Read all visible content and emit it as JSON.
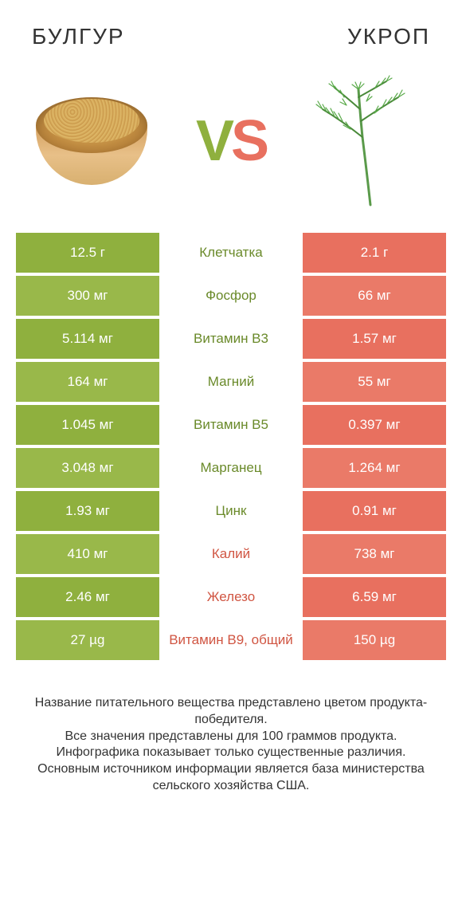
{
  "left_title": "БУЛГУР",
  "right_title": "УКРОП",
  "colors": {
    "green": "#8fb03e",
    "green_alt": "#99b84a",
    "orange": "#e8705f",
    "orange_alt": "#ea7a68",
    "text_green": "#6a8a2a",
    "text_orange": "#d05542"
  },
  "rows": [
    {
      "left": "12.5 г",
      "mid": "Клетчатка",
      "right": "2.1 г",
      "winner": "left"
    },
    {
      "left": "300 мг",
      "mid": "Фосфор",
      "right": "66 мг",
      "winner": "left"
    },
    {
      "left": "5.114 мг",
      "mid": "Витамин B3",
      "right": "1.57 мг",
      "winner": "left"
    },
    {
      "left": "164 мг",
      "mid": "Магний",
      "right": "55 мг",
      "winner": "left"
    },
    {
      "left": "1.045 мг",
      "mid": "Витамин B5",
      "right": "0.397 мг",
      "winner": "left"
    },
    {
      "left": "3.048 мг",
      "mid": "Марганец",
      "right": "1.264 мг",
      "winner": "left"
    },
    {
      "left": "1.93 мг",
      "mid": "Цинк",
      "right": "0.91 мг",
      "winner": "left"
    },
    {
      "left": "410 мг",
      "mid": "Калий",
      "right": "738 мг",
      "winner": "right"
    },
    {
      "left": "2.46 мг",
      "mid": "Железо",
      "right": "6.59 мг",
      "winner": "right"
    },
    {
      "left": "27 µg",
      "mid": "Витамин B9, общий",
      "right": "150 µg",
      "winner": "right"
    }
  ],
  "footer_lines": [
    "Название питательного вещества представлено цветом продукта-победителя.",
    "Все значения представлены для 100 граммов продукта.",
    "Инфографика показывает только существенные различия.",
    "Основным источником информации является база министерства сельского хозяйства США."
  ]
}
